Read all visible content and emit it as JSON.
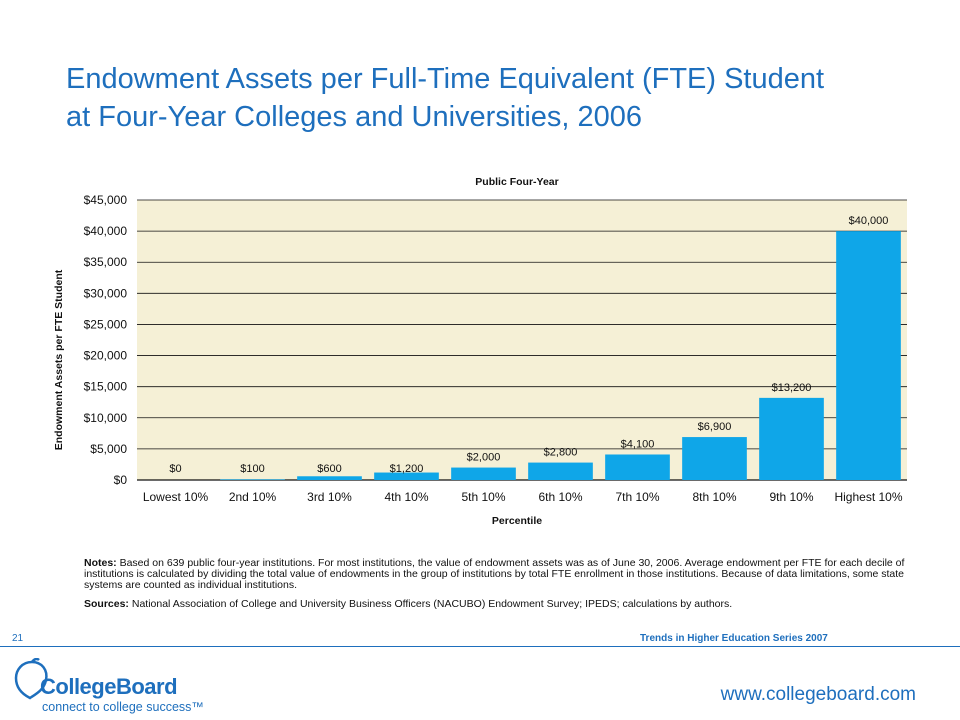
{
  "title": {
    "line1": "Endowment Assets per Full-Time Equivalent (FTE) Student",
    "line2": "at Four-Year Colleges and Universities, 2006"
  },
  "colors": {
    "title": "#1e6fbd",
    "bar": "#0fa6e8",
    "plot_background": "#f5f0d6",
    "gridline": "#111111",
    "footer_accent": "#1e6fbd"
  },
  "chart_data": {
    "type": "bar",
    "title": "Public Four-Year",
    "xlabel": "Percentile",
    "ylabel": "Endowment Assets per FTE Student",
    "categories": [
      "Lowest 10%",
      "2nd 10%",
      "3rd 10%",
      "4th 10%",
      "5th 10%",
      "6th 10%",
      "7th 10%",
      "8th 10%",
      "9th 10%",
      "Highest 10%"
    ],
    "values": [
      0,
      100,
      600,
      1200,
      2000,
      2800,
      4100,
      6900,
      13200,
      40000
    ],
    "data_labels": [
      "$0",
      "$100",
      "$600",
      "$1,200",
      "$2,000",
      "$2,800",
      "$4,100",
      "$6,900",
      "$13,200",
      "$40,000"
    ],
    "yticks": [
      0,
      5000,
      10000,
      15000,
      20000,
      25000,
      30000,
      35000,
      40000,
      45000
    ],
    "ytick_labels": [
      "$0",
      "$5,000",
      "$10,000",
      "$15,000",
      "$20,000",
      "$25,000",
      "$30,000",
      "$35,000",
      "$40,000",
      "$45,000"
    ],
    "ylim": [
      0,
      45000
    ],
    "grid": true,
    "legend": "none"
  },
  "notes": {
    "label": "Notes:",
    "text": "Based on 639 public four-year institutions. For most institutions, the value of endowment assets was as of June 30, 2006. Average endowment per FTE for each decile of institutions is calculated by dividing the total value of endowments in the group of institutions by total FTE enrollment in those institutions. Because of data limitations, some state systems are counted as individual institutions."
  },
  "sources": {
    "label": "Sources:",
    "text": "National Association of College and University Business Officers (NACUBO) Endowment Survey; IPEDS; calculations by authors."
  },
  "footer": {
    "page_number": "21",
    "series": "Trends in Higher Education Series 2007",
    "logo_brand": "CollegeBoard",
    "logo_tagline": "connect to college success™",
    "url": "www.collegeboard.com"
  }
}
